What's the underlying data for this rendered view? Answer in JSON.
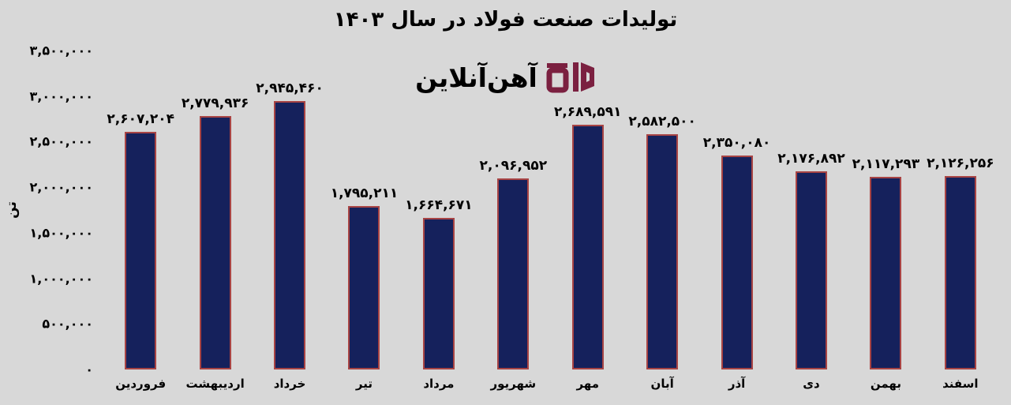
{
  "title": "تولیدات صنعت فولاد در سال ۱۴۰۳",
  "logo": {
    "text": "آهن‌آنلاین",
    "color": "#7b2040"
  },
  "y_axis": {
    "title": "تن",
    "ticks": [
      {
        "value": 3500000,
        "label": "۳,۵۰۰,۰۰۰"
      },
      {
        "value": 3000000,
        "label": "۳,۰۰۰,۰۰۰"
      },
      {
        "value": 2500000,
        "label": "۲,۵۰۰,۰۰۰"
      },
      {
        "value": 2000000,
        "label": "۲,۰۰۰,۰۰۰"
      },
      {
        "value": 1500000,
        "label": "۱,۵۰۰,۰۰۰"
      },
      {
        "value": 1000000,
        "label": "۱,۰۰۰,۰۰۰"
      },
      {
        "value": 500000,
        "label": "۵۰۰,۰۰۰"
      },
      {
        "value": 0,
        "label": "۰"
      }
    ]
  },
  "chart_data": {
    "type": "bar",
    "title": "تولیدات صنعت فولاد در سال ۱۴۰۳",
    "xlabel": "",
    "ylabel": "تن",
    "ylim": [
      0,
      3500000
    ],
    "grid": false,
    "legend": "none",
    "bar_color": "#15215c",
    "bar_border_color": "#a84444",
    "background_color": "#d8d8d8",
    "categories": [
      "فروردین",
      "اردیبهشت",
      "خرداد",
      "تیر",
      "مرداد",
      "شهریور",
      "مهر",
      "آبان",
      "آذر",
      "دی",
      "بهمن",
      "اسفند"
    ],
    "values": [
      2607204,
      2779936,
      2945460,
      1795211,
      1664671,
      2096952,
      2689591,
      2582500,
      2350080,
      2176892,
      2117293,
      2126256
    ],
    "value_labels": [
      "۲,۶۰۷,۲۰۴",
      "۲,۷۷۹,۹۳۶",
      "۲,۹۴۵,۴۶۰",
      "۱,۷۹۵,۲۱۱",
      "۱,۶۶۴,۶۷۱",
      "۲,۰۹۶,۹۵۲",
      "۲,۶۸۹,۵۹۱",
      "۲,۵۸۲,۵۰۰",
      "۲,۳۵۰,۰۸۰",
      "۲,۱۷۶,۸۹۲",
      "۲,۱۱۷,۲۹۳",
      "۲,۱۲۶,۲۵۶"
    ]
  }
}
